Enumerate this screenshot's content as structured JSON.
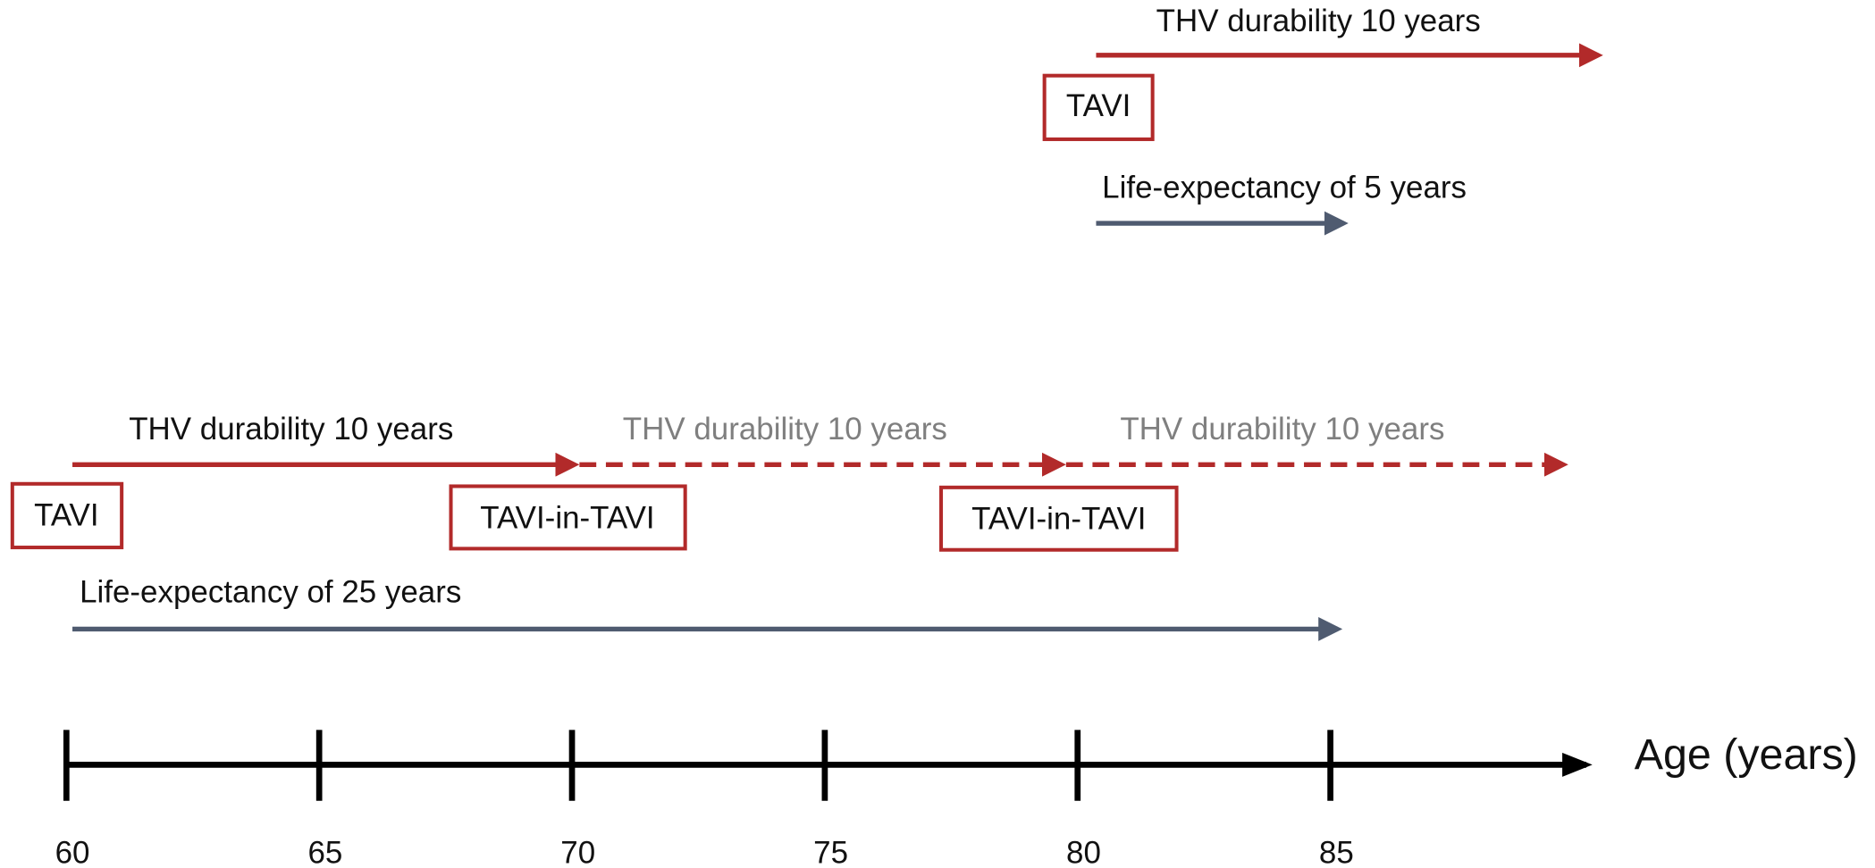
{
  "top": {
    "durability_label": "THV durability 10 years",
    "box_label": "TAVI",
    "life_label": "Life-expectancy of 5 years"
  },
  "bottom": {
    "durability_labels": [
      "THV durability 10 years",
      "THV durability 10 years",
      "THV durability 10 years"
    ],
    "boxes": [
      "TAVI",
      "TAVI-in-TAVI",
      "TAVI-in-TAVI"
    ],
    "life_label": "Life-expectancy of 25 years"
  },
  "axis": {
    "label": "Age (years)",
    "ticks": [
      60,
      65,
      70,
      75,
      80,
      85
    ]
  }
}
